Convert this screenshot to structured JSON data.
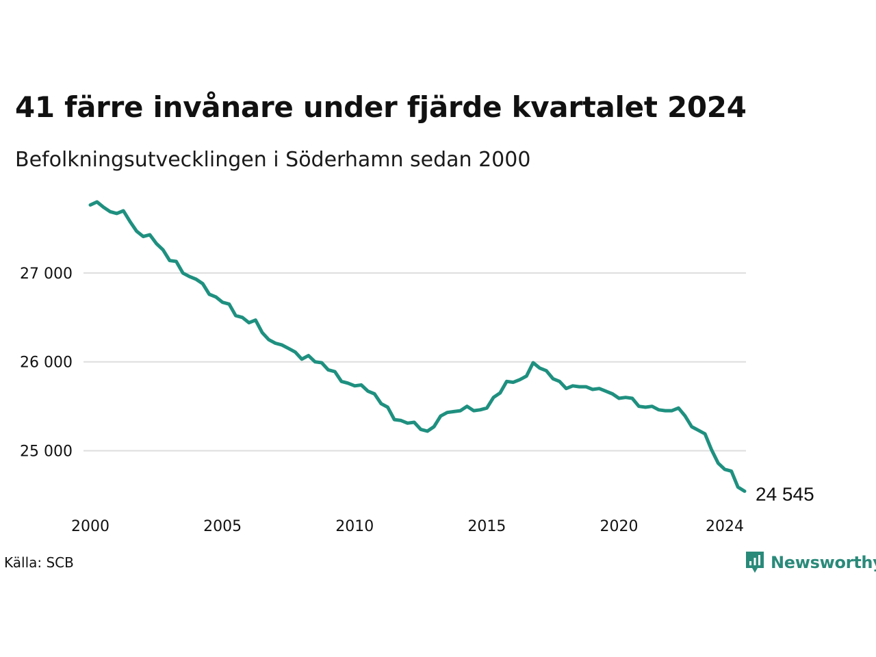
{
  "header": {
    "title": "41 färre invånare under fjärde kvartalet 2024",
    "subtitle": "Befolkningsutvecklingen i Söderhamn sedan 2000"
  },
  "footer": {
    "source": "Källa: SCB",
    "brand": "Newsworthy"
  },
  "colors": {
    "line": "#1f9080",
    "grid": "#dddddd",
    "brand": "#2a8a7a"
  },
  "chart_data": {
    "type": "line",
    "title": "41 färre invånare under fjärde kvartalet 2024",
    "subtitle": "Befolkningsutvecklingen i Söderhamn sedan 2000",
    "xlabel": "",
    "ylabel": "",
    "xlim": [
      2000,
      2025
    ],
    "ylim": [
      24450,
      27900
    ],
    "grid": true,
    "legend": "none",
    "x_ticks": [
      2000,
      2005,
      2010,
      2015,
      2020,
      2024
    ],
    "x_tick_labels": [
      "2000",
      "2005",
      "2010",
      "2015",
      "2020",
      "2024"
    ],
    "y_ticks": [
      25000,
      26000,
      27000
    ],
    "y_tick_labels": [
      "25 000",
      "26 000",
      "27 000"
    ],
    "end_label": "24 545",
    "series": [
      {
        "x": [
          2000.0,
          2000.25,
          2000.5,
          2000.75,
          2001.0,
          2001.25,
          2001.5,
          2001.75,
          2002.0,
          2002.25,
          2002.5,
          2002.75,
          2003.0,
          2003.25,
          2003.5,
          2003.75,
          2004.0,
          2004.25,
          2004.5,
          2004.75,
          2005.0,
          2005.25,
          2005.5,
          2005.75,
          2006.0,
          2006.25,
          2006.5,
          2006.75,
          2007.0,
          2007.25,
          2007.5,
          2007.75,
          2008.0,
          2008.25,
          2008.5,
          2008.75,
          2009.0,
          2009.25,
          2009.5,
          2009.75,
          2010.0,
          2010.25,
          2010.5,
          2010.75,
          2011.0,
          2011.25,
          2011.5,
          2011.75,
          2012.0,
          2012.25,
          2012.5,
          2012.75,
          2013.0,
          2013.25,
          2013.5,
          2013.75,
          2014.0,
          2014.25,
          2014.5,
          2014.75,
          2015.0,
          2015.25,
          2015.5,
          2015.75,
          2016.0,
          2016.25,
          2016.5,
          2016.75,
          2017.0,
          2017.25,
          2017.5,
          2017.75,
          2018.0,
          2018.25,
          2018.5,
          2018.75,
          2019.0,
          2019.25,
          2019.5,
          2019.75,
          2020.0,
          2020.25,
          2020.5,
          2020.75,
          2021.0,
          2021.25,
          2021.5,
          2021.75,
          2022.0,
          2022.25,
          2022.5,
          2022.75,
          2023.0,
          2023.25,
          2023.5,
          2023.75,
          2024.0,
          2024.25,
          2024.5,
          2024.75
        ],
        "values": [
          27765,
          27800,
          27740,
          27690,
          27670,
          27700,
          27580,
          27470,
          27410,
          27430,
          27330,
          27260,
          27140,
          27130,
          27000,
          26960,
          26930,
          26880,
          26760,
          26730,
          26670,
          26650,
          26520,
          26500,
          26440,
          26470,
          26330,
          26250,
          26210,
          26190,
          26150,
          26110,
          26030,
          26070,
          26000,
          25990,
          25910,
          25890,
          25780,
          25760,
          25730,
          25740,
          25670,
          25640,
          25530,
          25490,
          25350,
          25340,
          25310,
          25320,
          25240,
          25220,
          25270,
          25390,
          25430,
          25440,
          25450,
          25500,
          25450,
          25460,
          25480,
          25600,
          25650,
          25780,
          25770,
          25800,
          25840,
          25990,
          25930,
          25900,
          25810,
          25780,
          25700,
          25730,
          25720,
          25720,
          25690,
          25700,
          25670,
          25640,
          25590,
          25600,
          25590,
          25500,
          25490,
          25500,
          25460,
          25450,
          25450,
          25480,
          25390,
          25270,
          25230,
          25190,
          25010,
          24860,
          24790,
          24770,
          24590,
          24545
        ]
      }
    ]
  }
}
